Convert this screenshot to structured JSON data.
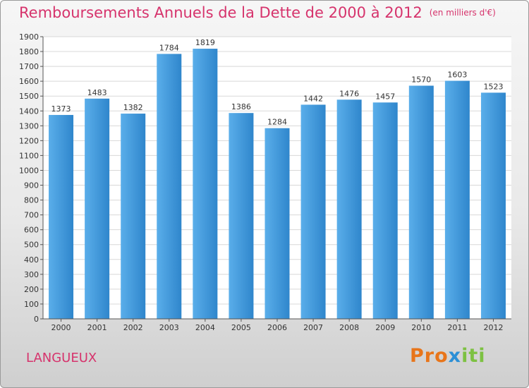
{
  "chart_data": {
    "type": "bar",
    "title": "Remboursements Annuels de la Dette de 2000 à 2012",
    "subtitle": "(en milliers d'€)",
    "categories": [
      "2000",
      "2001",
      "2002",
      "2003",
      "2004",
      "2005",
      "2006",
      "2007",
      "2008",
      "2009",
      "2010",
      "2011",
      "2012"
    ],
    "values": [
      1373,
      1483,
      1382,
      1784,
      1819,
      1386,
      1284,
      1442,
      1476,
      1457,
      1570,
      1603,
      1523
    ],
    "ylim": [
      0,
      1900
    ],
    "yticks": [
      0,
      100,
      200,
      300,
      400,
      500,
      600,
      700,
      800,
      900,
      1000,
      1100,
      1200,
      1300,
      1400,
      1500,
      1600,
      1700,
      1800,
      1900
    ],
    "grid": true,
    "bar_color": "#2f86cc",
    "bar_color_light": "#5aaeea"
  },
  "place": "LANGUEUX",
  "logo": {
    "part1": "Pro",
    "part2": "x",
    "part3": "iti"
  }
}
